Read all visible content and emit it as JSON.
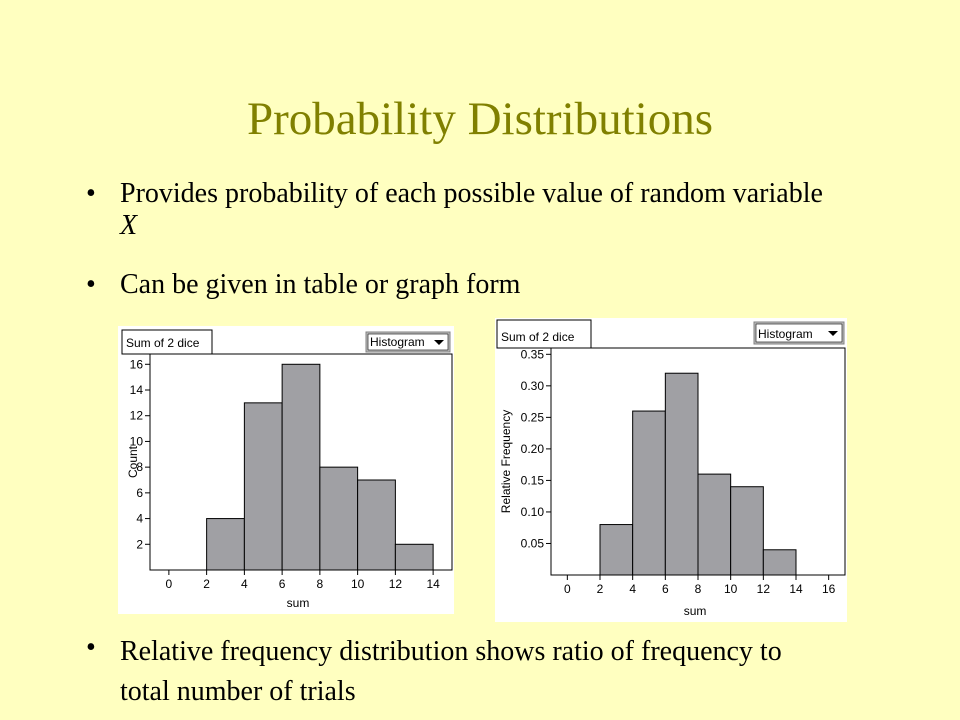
{
  "slide": {
    "title": "Probability Distributions",
    "bullets": [
      {
        "text_before": "Provides probability of each possible value of random variable ",
        "italic": "X"
      },
      {
        "text": "Can be given in table or graph form"
      },
      {
        "text": "Relative frequency distribution shows ratio of frequency to total number of trials"
      }
    ],
    "bullet_symbol": "•"
  },
  "colors": {
    "background": "#ffffc0",
    "title": "#808000",
    "bar_fill": "#a0a0a4",
    "panel": "#ffffff",
    "menu_bg": "#c0c0c0"
  },
  "chart_data": [
    {
      "type": "bar",
      "tab_label": "Sum of 2 dice",
      "menu_label": "Histogram",
      "xlabel": "sum",
      "ylabel": "Count",
      "bins": [
        [
          2,
          4
        ],
        [
          4,
          6
        ],
        [
          6,
          8
        ],
        [
          8,
          10
        ],
        [
          10,
          12
        ],
        [
          12,
          14
        ]
      ],
      "values": [
        4,
        13,
        16,
        8,
        7,
        2
      ],
      "xlim": [
        -1,
        15
      ],
      "ylim": [
        0,
        16.8
      ],
      "xticks": [
        "0",
        "2",
        "4",
        "6",
        "8",
        "10",
        "12",
        "14"
      ],
      "yticks": [
        "2",
        "4",
        "6",
        "8",
        "10",
        "12",
        "14",
        "16"
      ]
    },
    {
      "type": "bar",
      "tab_label": "Sum of 2 dice",
      "menu_label": "Histogram",
      "xlabel": "sum",
      "ylabel": "Relative Frequency",
      "bins": [
        [
          2,
          4
        ],
        [
          4,
          6
        ],
        [
          6,
          8
        ],
        [
          8,
          10
        ],
        [
          10,
          12
        ],
        [
          12,
          14
        ]
      ],
      "values": [
        0.08,
        0.26,
        0.32,
        0.16,
        0.14,
        0.04
      ],
      "xlim": [
        -1,
        17
      ],
      "ylim": [
        0,
        0.36
      ],
      "xticks": [
        "0",
        "2",
        "4",
        "6",
        "8",
        "10",
        "12",
        "14",
        "16"
      ],
      "yticks": [
        "0.05",
        "0.10",
        "0.15",
        "0.20",
        "0.25",
        "0.30",
        "0.35"
      ]
    }
  ]
}
